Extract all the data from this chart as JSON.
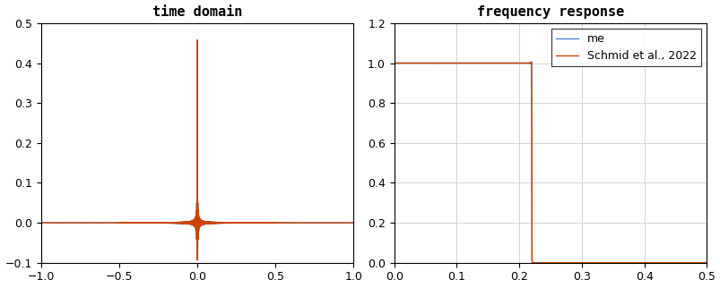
{
  "title_left": "time domain",
  "title_right": "frequency response",
  "color_me": "#4488CC",
  "color_schmid": "#CC4400",
  "legend_me": "me",
  "legend_schmid": "Schmid et al., 2022",
  "xlim_left": [
    -1,
    1
  ],
  "ylim_left": [
    -0.1,
    0.5
  ],
  "xlim_right": [
    0,
    0.5
  ],
  "ylim_right": [
    0,
    1.2
  ],
  "xticks_left": [
    -1.0,
    -0.5,
    0.0,
    0.5,
    1.0
  ],
  "yticks_left": [
    -0.1,
    0.0,
    0.1,
    0.2,
    0.3,
    0.4,
    0.5
  ],
  "xticks_right": [
    0.0,
    0.1,
    0.2,
    0.3,
    0.4,
    0.5
  ],
  "yticks_right": [
    0.0,
    0.2,
    0.4,
    0.6,
    0.8,
    1.0,
    1.2
  ],
  "title_fontsize": 11,
  "title_fontweight": "bold"
}
